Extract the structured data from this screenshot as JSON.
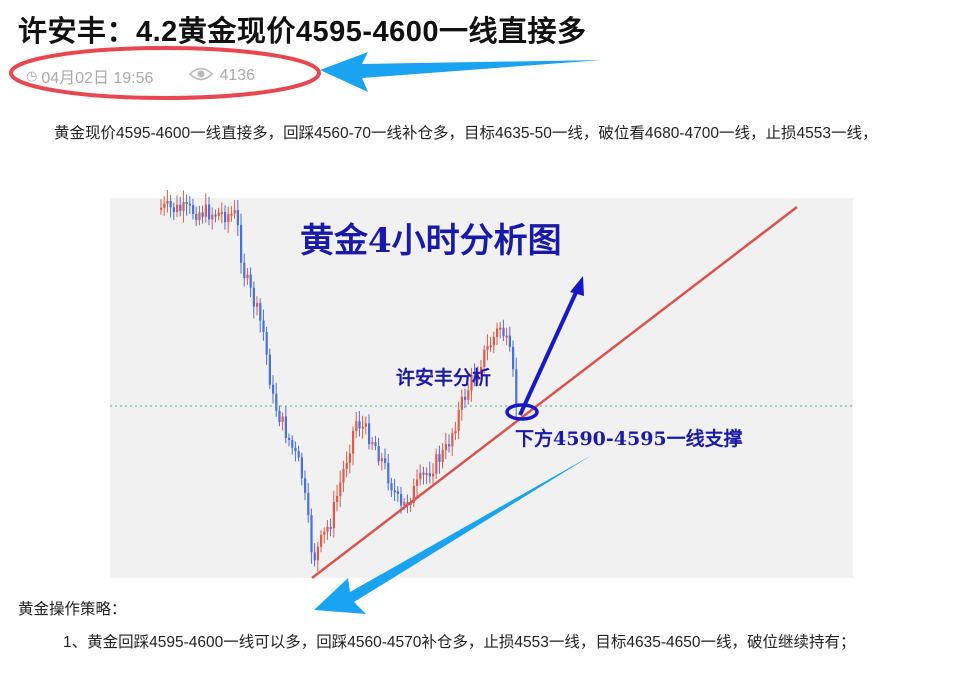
{
  "article": {
    "title": "许安丰：4.2黄金现价4595-4600一线直接多",
    "date": "04月02日 19:56",
    "views": "4136",
    "paragraph1": "黄金现价4595-4600一线直接多，回踩4560-70一线补仓多，目标4635-50一线，破位看4680-4700一线，止损4553一线，",
    "section_heading": "黄金操作策略：",
    "paragraph2": "1、黄金回踩4595-4600一线可以多，回踩4560-4570补仓多，止损4553一线，目标4635-4650一线，破位继续持有；"
  },
  "chart_image": {
    "title": "黄金4小时分析图",
    "author_label": "许安丰分析",
    "support_label": "下方4590-4595一线支撑"
  },
  "colors": {
    "annotation_red": "#e8474f",
    "annotation_blue": "#1aa3f0",
    "bull": "#e05a4a",
    "bear": "#4a6fe0",
    "chart_text": "#1a1aa8"
  },
  "icons": {
    "time": "clock-icon",
    "views": "eye-icon"
  }
}
